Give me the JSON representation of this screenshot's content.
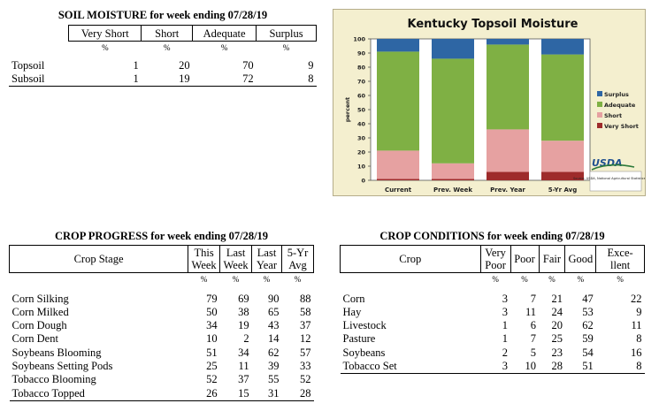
{
  "soil_moisture": {
    "title": "SOIL MOISTURE for week ending 07/28/19",
    "columns": [
      "Very Short",
      "Short",
      "Adequate",
      "Surplus"
    ],
    "units": [
      "%",
      "%",
      "%",
      "%"
    ],
    "rows": [
      {
        "label": "Topsoil",
        "values": [
          "1",
          "20",
          "70",
          "9"
        ]
      },
      {
        "label": "Subsoil",
        "values": [
          "1",
          "19",
          "72",
          "8"
        ]
      }
    ]
  },
  "crop_progress": {
    "title": "CROP PROGRESS for week ending 07/28/19",
    "stage_header": "Crop Stage",
    "columns": [
      {
        "l1": "This",
        "l2": "Week"
      },
      {
        "l1": "Last",
        "l2": "Week"
      },
      {
        "l1": "Last",
        "l2": "Year"
      },
      {
        "l1": "5-Yr",
        "l2": "Avg"
      }
    ],
    "units": [
      "%",
      "%",
      "%",
      "%"
    ],
    "rows": [
      {
        "label": "Corn Silking",
        "values": [
          "79",
          "69",
          "90",
          "88"
        ]
      },
      {
        "label": "Corn Milked",
        "values": [
          "50",
          "38",
          "65",
          "58"
        ]
      },
      {
        "label": "Corn Dough",
        "values": [
          "34",
          "19",
          "43",
          "37"
        ]
      },
      {
        "label": "Corn Dent",
        "values": [
          "10",
          "2",
          "14",
          "12"
        ]
      },
      {
        "label": "Soybeans Blooming",
        "values": [
          "51",
          "34",
          "62",
          "57"
        ]
      },
      {
        "label": "Soybeans Setting Pods",
        "values": [
          "25",
          "11",
          "39",
          "33"
        ]
      },
      {
        "label": "Tobacco Blooming",
        "values": [
          "52",
          "37",
          "55",
          "52"
        ]
      },
      {
        "label": "Tobacco Topped",
        "values": [
          "26",
          "15",
          "31",
          "28"
        ]
      }
    ]
  },
  "crop_conditions": {
    "title": "CROP CONDITIONS for week ending 07/28/19",
    "crop_header": "Crop",
    "columns": [
      {
        "l1": "Very",
        "l2": "Poor"
      },
      {
        "l1": "Poor",
        "l2": ""
      },
      {
        "l1": "Fair",
        "l2": ""
      },
      {
        "l1": "Good",
        "l2": ""
      },
      {
        "l1": "Exce-",
        "l2": "llent"
      }
    ],
    "units": [
      "%",
      "%",
      "%",
      "%",
      "%"
    ],
    "rows": [
      {
        "label": "Corn",
        "values": [
          "3",
          "7",
          "21",
          "47",
          "22"
        ]
      },
      {
        "label": "Hay",
        "values": [
          "3",
          "11",
          "24",
          "53",
          "9"
        ]
      },
      {
        "label": "Livestock",
        "values": [
          "1",
          "6",
          "20",
          "62",
          "11"
        ]
      },
      {
        "label": "Pasture",
        "values": [
          "1",
          "7",
          "25",
          "59",
          "8"
        ]
      },
      {
        "label": "Soybeans",
        "values": [
          "2",
          "5",
          "23",
          "54",
          "16"
        ]
      },
      {
        "label": "Tobacco Set",
        "values": [
          "3",
          "10",
          "28",
          "51",
          "8"
        ]
      }
    ]
  },
  "chart_logo": {
    "text": "USDA",
    "source": "Source: USDA, National Agricultural Statistics Service"
  },
  "chart_data": {
    "type": "bar",
    "stacked": true,
    "title": "Kentucky Topsoil Moisture",
    "ylabel": "percent",
    "xlabel": "",
    "ylim": [
      0,
      100
    ],
    "yticks": [
      0,
      10,
      20,
      30,
      40,
      50,
      60,
      70,
      80,
      90,
      100
    ],
    "categories": [
      "Current",
      "Prev. Week",
      "Prev. Year",
      "5-Yr Avg"
    ],
    "series": [
      {
        "name": "Very Short",
        "color": "#9e2b2b",
        "values": [
          1,
          1,
          6,
          6
        ]
      },
      {
        "name": "Short",
        "color": "#e6a1a1",
        "values": [
          20,
          11,
          30,
          22
        ]
      },
      {
        "name": "Adequate",
        "color": "#7fb044",
        "values": [
          70,
          74,
          60,
          61
        ]
      },
      {
        "name": "Surplus",
        "color": "#2e66a4",
        "values": [
          9,
          14,
          4,
          11
        ]
      }
    ],
    "legend_order": [
      "Surplus",
      "Adequate",
      "Short",
      "Very Short"
    ],
    "legend_position": "right",
    "grid": false
  }
}
